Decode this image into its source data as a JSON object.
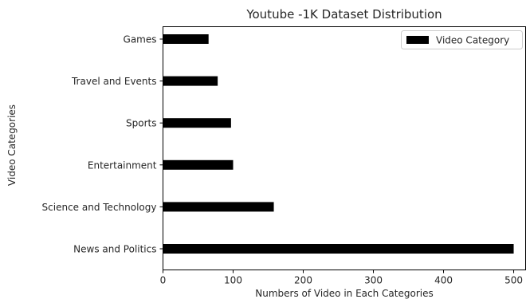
{
  "chart_data": {
    "type": "bar",
    "orientation": "horizontal",
    "title": "Youtube -1K Dataset Distribution",
    "xlabel": "Numbers of Video in Each Categories",
    "ylabel": "Video Categories",
    "categories": [
      "News and Politics",
      "Science and Technology",
      "Entertainment",
      "Sports",
      "Travel and Events",
      "Games"
    ],
    "series": [
      {
        "name": "Video Category",
        "values": [
          500,
          158,
          100,
          97,
          78,
          65
        ],
        "color": "#000000"
      }
    ],
    "xlim": [
      0,
      517
    ],
    "xticks": [
      0,
      100,
      200,
      300,
      400,
      500
    ],
    "grid": false,
    "legend_position": "top-right"
  }
}
